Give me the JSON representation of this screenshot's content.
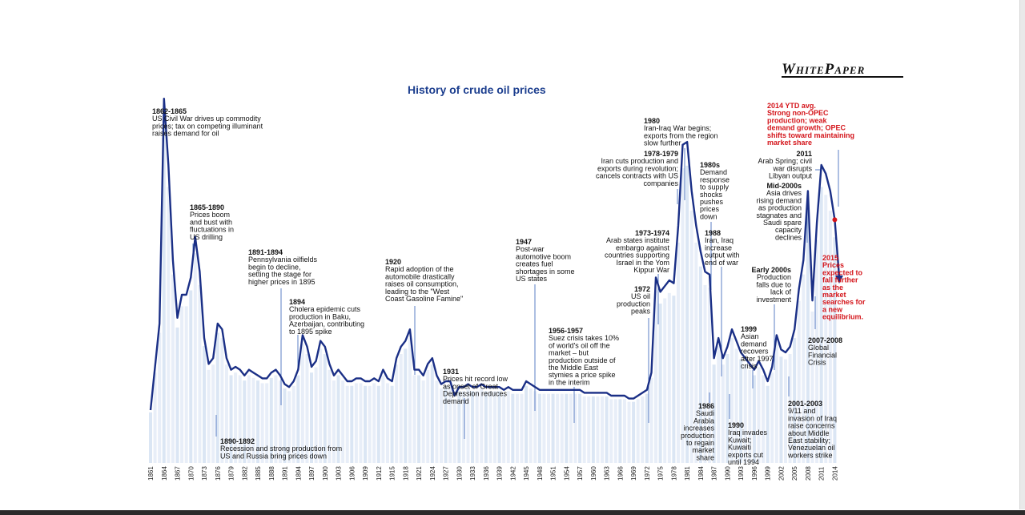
{
  "brand": {
    "text": "WhitePaper"
  },
  "chart_data": {
    "type": "line",
    "title": "History of crude oil prices",
    "xlabel": "",
    "ylabel": "",
    "x_ticks": [
      "1861",
      "1864",
      "1867",
      "1870",
      "1873",
      "1876",
      "1879",
      "1882",
      "1885",
      "1888",
      "1891",
      "1894",
      "1897",
      "1900",
      "1903",
      "1906",
      "1909",
      "1912",
      "1915",
      "1918",
      "1921",
      "1924",
      "1927",
      "1930",
      "1933",
      "1936",
      "1939",
      "1942",
      "1945",
      "1948",
      "1951",
      "1954",
      "1957",
      "1960",
      "1963",
      "1966",
      "1969",
      "1972",
      "1975",
      "1978",
      "1981",
      "1984",
      "1987",
      "1990",
      "1993",
      "1996",
      "1999",
      "2002",
      "2005",
      "2008",
      "2011",
      "2014"
    ],
    "x": [
      1861,
      1862,
      1863,
      1864,
      1865,
      1866,
      1867,
      1868,
      1869,
      1870,
      1871,
      1872,
      1873,
      1874,
      1875,
      1876,
      1877,
      1878,
      1879,
      1880,
      1881,
      1882,
      1883,
      1884,
      1885,
      1886,
      1887,
      1888,
      1889,
      1890,
      1891,
      1892,
      1893,
      1894,
      1895,
      1896,
      1897,
      1898,
      1899,
      1900,
      1901,
      1902,
      1903,
      1904,
      1905,
      1906,
      1907,
      1908,
      1909,
      1910,
      1911,
      1912,
      1913,
      1914,
      1915,
      1916,
      1917,
      1918,
      1919,
      1920,
      1921,
      1922,
      1923,
      1924,
      1925,
      1926,
      1927,
      1928,
      1929,
      1930,
      1931,
      1932,
      1933,
      1934,
      1935,
      1936,
      1937,
      1938,
      1939,
      1940,
      1941,
      1942,
      1943,
      1944,
      1945,
      1946,
      1947,
      1948,
      1949,
      1950,
      1951,
      1952,
      1953,
      1954,
      1955,
      1956,
      1957,
      1958,
      1959,
      1960,
      1961,
      1962,
      1963,
      1964,
      1965,
      1966,
      1967,
      1968,
      1969,
      1970,
      1971,
      1972,
      1973,
      1974,
      1975,
      1976,
      1977,
      1978,
      1979,
      1980,
      1981,
      1982,
      1983,
      1984,
      1985,
      1986,
      1987,
      1988,
      1989,
      1990,
      1991,
      1992,
      1993,
      1994,
      1995,
      1996,
      1997,
      1998,
      1999,
      2000,
      2001,
      2002,
      2003,
      2004,
      2005,
      2006,
      2007,
      2008,
      2009,
      2010,
      2011,
      2012,
      2013,
      2014,
      2015
    ],
    "y": [
      10,
      25,
      40,
      118,
      95,
      62,
      42,
      50,
      50,
      56,
      70,
      58,
      35,
      26,
      28,
      40,
      38,
      28,
      24,
      25,
      24,
      22,
      24,
      23,
      22,
      21,
      21,
      23,
      24,
      22,
      19,
      18,
      20,
      24,
      36,
      32,
      25,
      27,
      34,
      32,
      26,
      22,
      24,
      22,
      20,
      20,
      21,
      21,
      20,
      20,
      21,
      20,
      24,
      21,
      20,
      28,
      32,
      34,
      38,
      24,
      24,
      22,
      26,
      28,
      22,
      19,
      20,
      20,
      15,
      18,
      18,
      19,
      18,
      18,
      19,
      18,
      18,
      18,
      18,
      17,
      18,
      17,
      17,
      17,
      20,
      19,
      18,
      17,
      17,
      17,
      17,
      17,
      17,
      17,
      17,
      17,
      17,
      16,
      16,
      16,
      16,
      16,
      16,
      15,
      15,
      15,
      15,
      14,
      14,
      15,
      16,
      17,
      23,
      56,
      51,
      53,
      55,
      54,
      74,
      102,
      103,
      86,
      74,
      65,
      58,
      57,
      28,
      35,
      28,
      32,
      38,
      34,
      30,
      28,
      26,
      24,
      27,
      24,
      20,
      25,
      36,
      31,
      30,
      32,
      38,
      52,
      62,
      86,
      48,
      75,
      95,
      92,
      86,
      76,
      55
    ],
    "ylim": [
      0,
      130
    ],
    "series": [
      {
        "values_ref": "y",
        "color": "#1a2f86"
      }
    ],
    "annotations": [
      {
        "lines": [
          "1862-1865",
          "US Civil War drives up commodity",
          "prices; tax on competing illuminant",
          "raises demand for oil"
        ]
      },
      {
        "lines": [
          "1865-1890",
          "Prices boom",
          "and bust with",
          "fluctuations in",
          "US drilling"
        ]
      },
      {
        "lines": [
          "1891-1894",
          "Pennsylvania oilfields",
          "begin to decline,",
          "setting the stage for",
          "higher prices in 1895"
        ]
      },
      {
        "lines": [
          "1894",
          "Cholera epidemic cuts",
          "production in Baku,",
          "Azerbaijan, contributing",
          "to 1895 spike"
        ]
      },
      {
        "lines": [
          "1890-1892",
          "Recession and strong production from",
          "US and Russia bring prices down"
        ]
      },
      {
        "lines": [
          "1920",
          "Rapid adoption of the",
          "automobile drastically",
          "raises oil consumption,",
          "leading to the \"West",
          "Coast Gasoline Famine\""
        ]
      },
      {
        "lines": [
          "1931",
          "Prices hit record low",
          "as onset of Great",
          "Depression reduces",
          "demand"
        ]
      },
      {
        "lines": [
          "1947",
          "Post-war",
          "automotive boom",
          "creates fuel",
          "shortages in some",
          "US states"
        ]
      },
      {
        "lines": [
          "1956-1957",
          "Suez crisis takes 10%",
          "of world's oil off the",
          "market – but",
          "production outside of",
          "the Middle East",
          "stymies a price spike",
          "in the interim"
        ]
      },
      {
        "lines": [
          "1972",
          "US oil",
          "production",
          "peaks"
        ]
      },
      {
        "lines": [
          "1973-1974",
          "Arab states institute",
          "embargo against",
          "countries supporting",
          "Israel in the Yom",
          "Kippur War"
        ]
      },
      {
        "lines": [
          "1978-1979",
          "Iran cuts production and",
          "exports during revolution;",
          "cancels contracts with US",
          "companies"
        ]
      },
      {
        "lines": [
          "1980",
          "Iran-Iraq War begins;",
          "exports from the region",
          "slow further"
        ]
      },
      {
        "lines": [
          "1980s",
          "Demand",
          "response",
          "to supply",
          "shocks",
          "pushes",
          "prices",
          "down"
        ]
      },
      {
        "lines": [
          "1988",
          "Iran, Iraq",
          "increase",
          "output with",
          "end of war"
        ]
      },
      {
        "lines": [
          "1986",
          "Saudi",
          "Arabia",
          "increases",
          "production",
          "to regain",
          "market",
          "share"
        ]
      },
      {
        "lines": [
          "1990",
          "Iraq invades",
          "Kuwait;",
          "Kuwaiti",
          "exports cut",
          "until 1994"
        ]
      },
      {
        "lines": [
          "1999",
          "Asian",
          "demand",
          "recovers",
          "after 1997",
          "crisis"
        ]
      },
      {
        "lines": [
          "Early 2000s",
          "Production",
          "falls due to",
          "lack of",
          "investment"
        ]
      },
      {
        "lines": [
          "2001-2003",
          "9/11 and",
          "invasion of Iraq",
          "raise concerns",
          "about Middle",
          "East stability;",
          "Venezuelan oil",
          "workers strike"
        ]
      },
      {
        "lines": [
          "Mid-2000s",
          "Asia drives",
          "rising demand",
          "as production",
          "stagnates and",
          "Saudi spare",
          "capacity",
          "declines"
        ]
      },
      {
        "lines": [
          "2011",
          "Arab Spring; civil",
          "war disrupts",
          "Libyan output"
        ]
      },
      {
        "lines": [
          "2007-2008",
          "Global",
          "Financial",
          "Crisis"
        ]
      },
      {
        "lines": [
          "2014 YTD avg.",
          "Strong non-OPEC",
          "production; weak",
          "demand growth; OPEC",
          "shifts toward maintaining",
          "market share"
        ],
        "color": "red"
      },
      {
        "lines": [
          "2015",
          "Prices",
          "expected to",
          "fall further",
          "as the",
          "market",
          "searches for",
          "a new",
          "equilibrium."
        ],
        "color": "red"
      }
    ]
  }
}
